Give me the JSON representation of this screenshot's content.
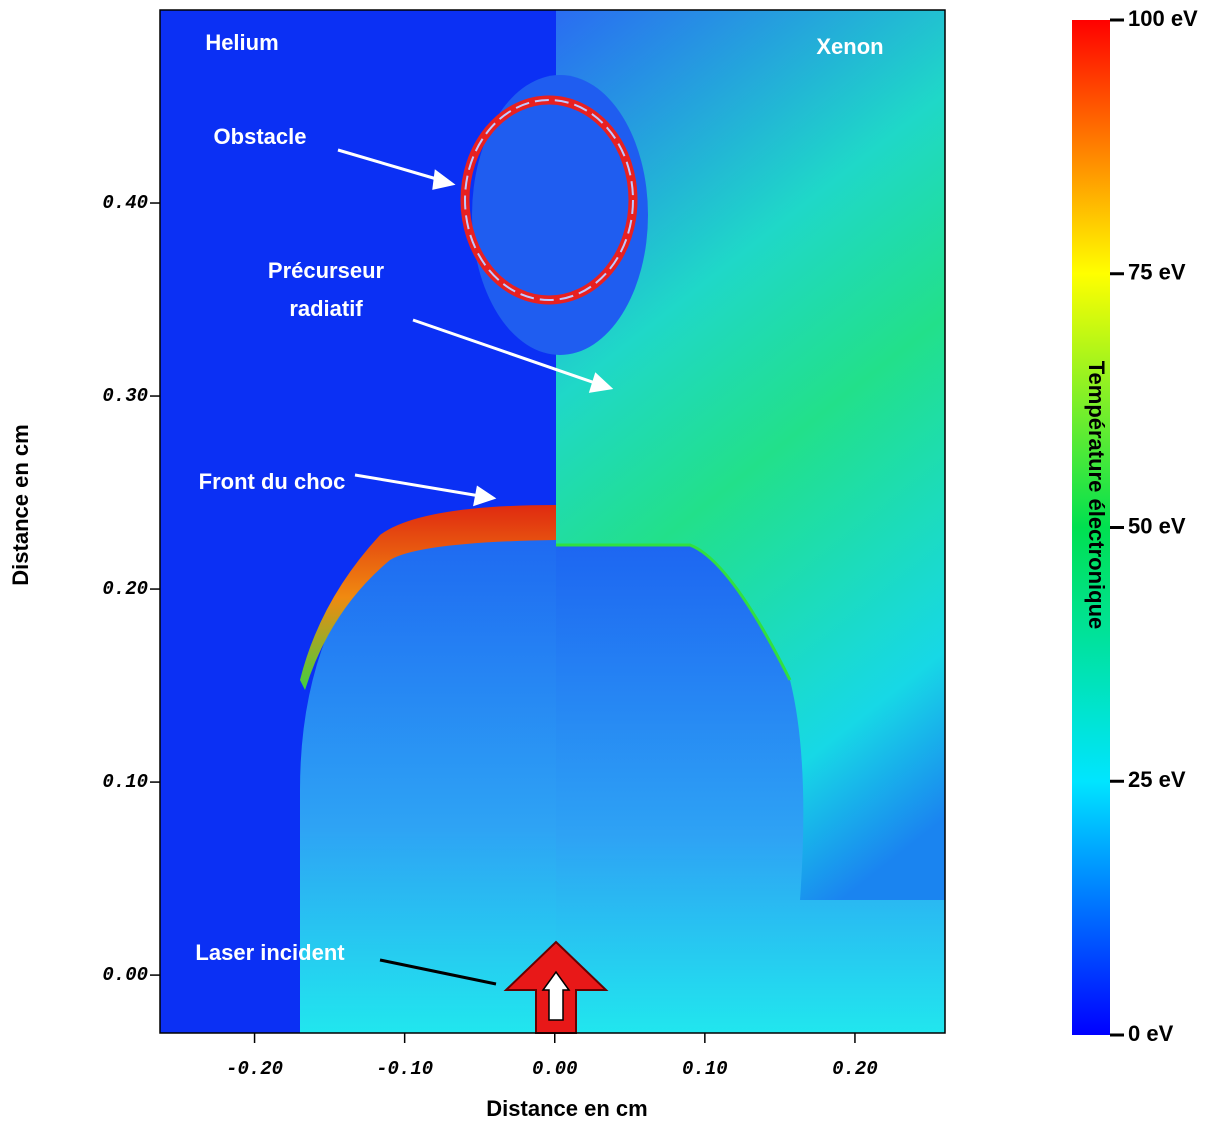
{
  "chart_data": {
    "type": "image",
    "xlabel": "Distance en cm",
    "ylabel": "Distance en cm",
    "xlim": [
      -0.263,
      0.26
    ],
    "ylim": [
      -0.03,
      0.5
    ],
    "xticks": [
      {
        "value": -0.2,
        "label": "-0.20"
      },
      {
        "value": -0.1,
        "label": "-0.10"
      },
      {
        "value": 0,
        "label": "0.00"
      },
      {
        "value": 0.1,
        "label": "0.10"
      },
      {
        "value": 0.2,
        "label": "0.20"
      }
    ],
    "yticks": [
      {
        "value": 0,
        "label": "0.00"
      },
      {
        "value": 0.1,
        "label": "0.10"
      },
      {
        "value": 0.2,
        "label": "0.20"
      },
      {
        "value": 0.3,
        "label": "0.30"
      },
      {
        "value": 0.4,
        "label": "0.40"
      }
    ],
    "panels": [
      "Helium",
      "Xenon"
    ],
    "annotations": [
      "Obstacle",
      "Précurseur",
      "radiatif",
      "Front du choc",
      "Laser incident"
    ],
    "colorbar": {
      "label": "Température électronique",
      "lim": [
        0,
        100
      ],
      "ticks": [
        {
          "value": 0,
          "label": "0 eV"
        },
        {
          "value": 25,
          "label": "25 eV"
        },
        {
          "value": 50,
          "label": "50 eV"
        },
        {
          "value": 75,
          "label": "75 eV"
        },
        {
          "value": 100,
          "label": "100 eV"
        }
      ]
    }
  }
}
